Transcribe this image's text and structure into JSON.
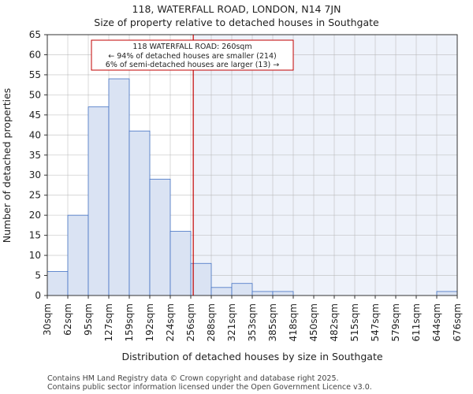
{
  "chart_data": {
    "type": "bar",
    "title_lines": [
      "118, WATERFALL ROAD, LONDON, N14 7JN",
      "Size of property relative to detached houses in Southgate"
    ],
    "xlabel": "Distribution of detached houses by size in Southgate",
    "ylabel": "Number of detached properties",
    "bin_edges": [
      30,
      62,
      95,
      127,
      159,
      192,
      224,
      256,
      288,
      321,
      353,
      385,
      418,
      450,
      482,
      515,
      547,
      579,
      611,
      644,
      676
    ],
    "x_tick_labels": [
      "30sqm",
      "62sqm",
      "95sqm",
      "127sqm",
      "159sqm",
      "192sqm",
      "224sqm",
      "256sqm",
      "288sqm",
      "321sqm",
      "353sqm",
      "385sqm",
      "418sqm",
      "450sqm",
      "482sqm",
      "515sqm",
      "547sqm",
      "579sqm",
      "611sqm",
      "644sqm",
      "676sqm"
    ],
    "values": [
      6,
      20,
      47,
      54,
      41,
      29,
      16,
      8,
      2,
      3,
      1,
      1,
      0,
      0,
      0,
      0,
      0,
      0,
      0,
      1
    ],
    "ylim": [
      0,
      65
    ],
    "y_ticks": [
      0,
      5,
      10,
      15,
      20,
      25,
      30,
      35,
      40,
      45,
      50,
      55,
      60,
      65
    ],
    "property_line_value": 260,
    "annotation": {
      "line1": "118 WATERFALL ROAD: 260sqm",
      "line2": "← 94% of detached houses are smaller (214)",
      "line3": "6% of semi-detached houses are larger (13) →"
    },
    "colors": {
      "bar_fill": "#dae3f3",
      "bar_stroke": "#4472c4",
      "highlight_fill": "#eef2fa",
      "property_line": "#c00000",
      "annotation_border": "#c00000"
    }
  },
  "footer": {
    "line1": "Contains HM Land Registry data © Crown copyright and database right 2025.",
    "line2": "Contains public sector information licensed under the Open Government Licence v3.0."
  }
}
